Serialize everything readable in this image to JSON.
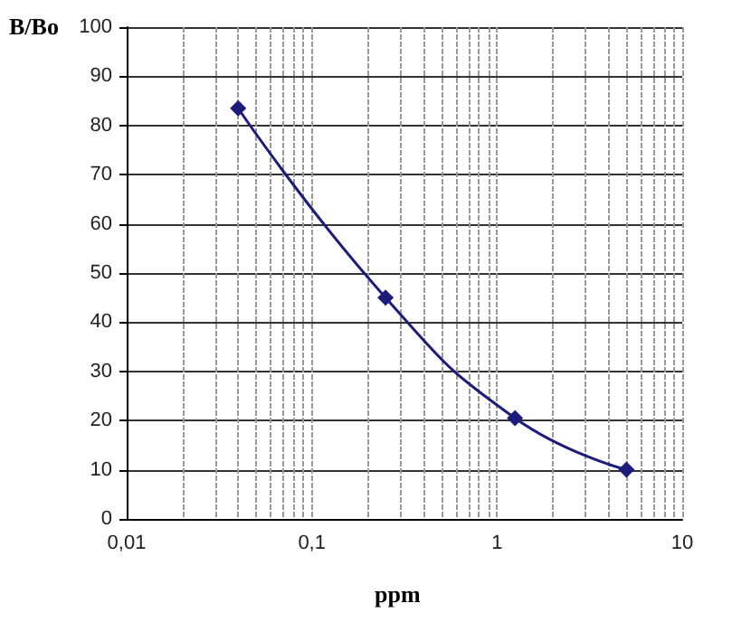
{
  "chart_data": {
    "type": "line",
    "xlabel": "ppm",
    "ylabel": "B/Bo",
    "x": [
      0.04,
      0.25,
      1.25,
      5
    ],
    "series": [
      {
        "color": "#1c1c7a",
        "values": [
          83.5,
          45,
          20.5,
          10
        ]
      }
    ],
    "log": "x",
    "xlim": [
      0.01,
      10
    ],
    "xticks": [
      {
        "value": 0.01,
        "label": "0,01"
      },
      {
        "value": 0.1,
        "label": "0,1"
      },
      1,
      10
    ],
    "ylim": [
      0,
      100
    ],
    "yticks": [
      0,
      10,
      20,
      30,
      40,
      50,
      60,
      70,
      80,
      90,
      100
    ],
    "grid": true,
    "marker": "diamond",
    "line_style": "solid"
  }
}
